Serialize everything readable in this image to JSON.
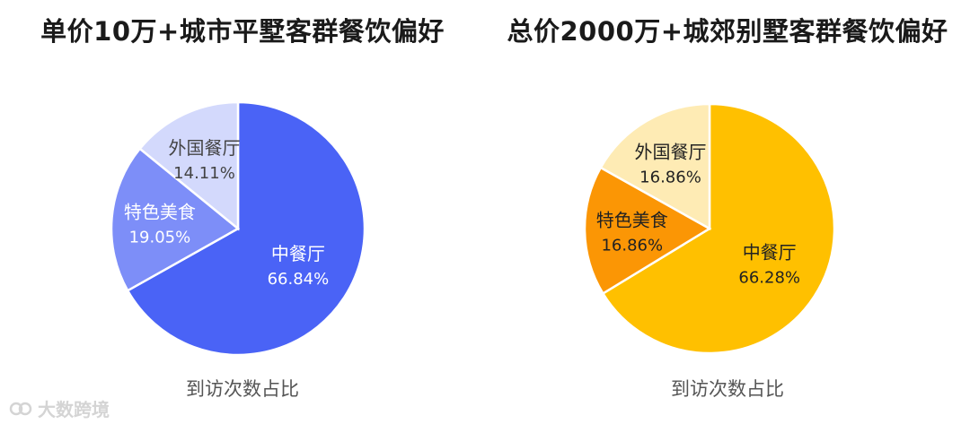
{
  "chart_data": [
    {
      "type": "pie",
      "title": "单价10万+城市平墅客群餐饮偏好",
      "caption": "到访次数占比",
      "slices": [
        {
          "label": "中餐厅",
          "value": 66.84,
          "value_text": "66.84%",
          "color": "#4A63F6",
          "label_color": "#ffffff"
        },
        {
          "label": "特色美食",
          "value": 19.05,
          "value_text": "19.05%",
          "color": "#7D8EF8",
          "label_color": "#ffffff"
        },
        {
          "label": "外国餐厅",
          "value": 14.11,
          "value_text": "14.11%",
          "color": "#D3D9FC",
          "label_color": "#444444"
        }
      ]
    },
    {
      "type": "pie",
      "title": "总价2000万+城郊别墅客群餐饮偏好",
      "caption": "到访次数占比",
      "slices": [
        {
          "label": "中餐厅",
          "value": 66.28,
          "value_text": "66.28%",
          "color": "#FFC000",
          "label_color": "#222222"
        },
        {
          "label": "特色美食",
          "value": 16.86,
          "value_text": "16.86%",
          "color": "#FB9605",
          "label_color": "#222222"
        },
        {
          "label": "外国餐厅",
          "value": 16.86,
          "value_text": "16.86%",
          "color": "#FEEBB4",
          "label_color": "#222222"
        }
      ]
    }
  ],
  "watermark": {
    "text": "大数跨境"
  }
}
